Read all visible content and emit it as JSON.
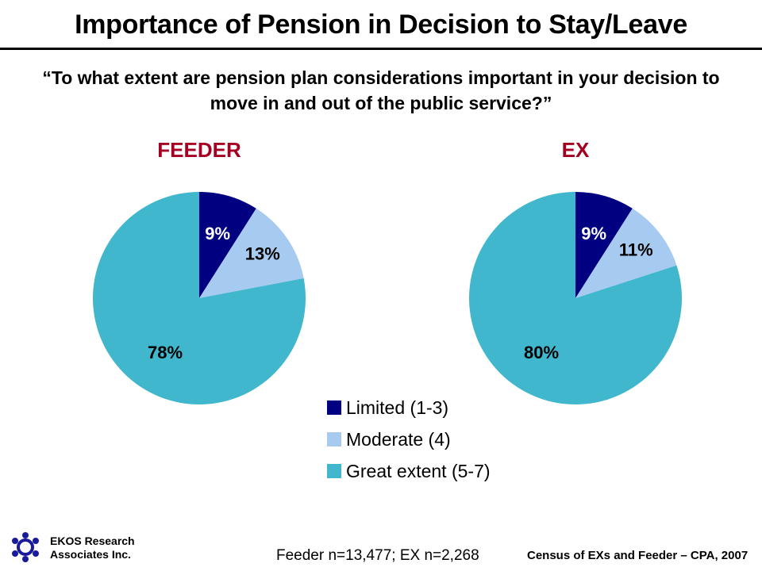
{
  "header": {
    "title": "Importance of Pension in Decision to Stay/Leave",
    "subtitle_line1": "“To what extent are pension plan considerations important in your decision to",
    "subtitle_line2": "move in and out of the public service?”"
  },
  "colors": {
    "limited": "#000080",
    "moderate": "#a6caf0",
    "great": "#40b7cd",
    "pie_title": "#a50021"
  },
  "chart_data": [
    {
      "type": "pie",
      "title": "FEEDER",
      "categories": [
        "Limited (1-3)",
        "Moderate (4)",
        "Great extent (5-7)"
      ],
      "values": [
        9,
        13,
        78
      ],
      "labels": [
        "9%",
        "13%",
        "78%"
      ],
      "legend": "bottom-center"
    },
    {
      "type": "pie",
      "title": "EX",
      "categories": [
        "Limited (1-3)",
        "Moderate (4)",
        "Great extent (5-7)"
      ],
      "values": [
        9,
        11,
        80
      ],
      "labels": [
        "9%",
        "11%",
        "80%"
      ],
      "legend": "bottom-center"
    }
  ],
  "legend": {
    "items": [
      {
        "label": "Limited (1-3)",
        "color": "#000080"
      },
      {
        "label": "Moderate (4)",
        "color": "#a6caf0"
      },
      {
        "label": "Great extent (5-7)",
        "color": "#40b7cd"
      }
    ]
  },
  "footer": {
    "logo_line1": "EKOS Research",
    "logo_line2": "Associates Inc.",
    "sample_sizes": "Feeder n=13,477; EX n=2,268",
    "source": "Census of EXs and Feeder – CPA, 2007"
  }
}
